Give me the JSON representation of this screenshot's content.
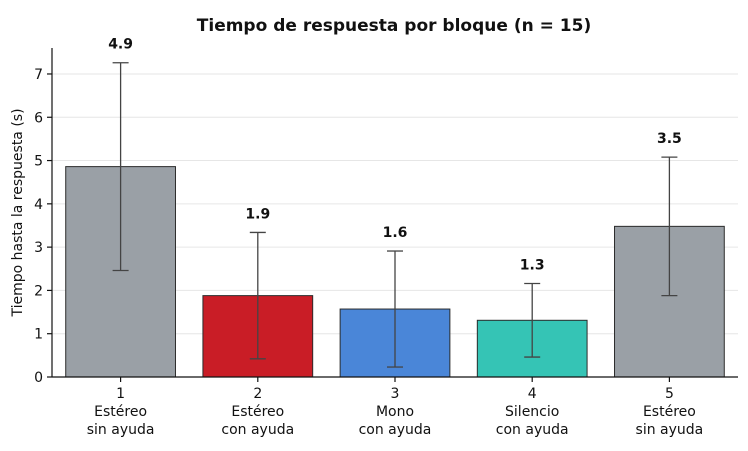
{
  "chart_data": {
    "type": "bar",
    "title": "Tiempo de respuesta por bloque (n = 15)",
    "ylabel": "Tiempo hasta la respuesta (s)",
    "xlabel": "",
    "ylim": [
      0,
      7.6
    ],
    "yticks": [
      0,
      1,
      2,
      3,
      4,
      5,
      6,
      7
    ],
    "grid": "y",
    "categories": [
      {
        "number": "1",
        "line1": "Estéreo",
        "line2": "sin ayuda"
      },
      {
        "number": "2",
        "line1": "Estéreo",
        "line2": "con ayuda"
      },
      {
        "number": "3",
        "line1": "Mono",
        "line2": "con ayuda"
      },
      {
        "number": "4",
        "line1": "Silencio",
        "line2": "con ayuda"
      },
      {
        "number": "5",
        "line1": "Estéreo",
        "line2": "sin ayuda"
      }
    ],
    "values": [
      4.86,
      1.88,
      1.57,
      1.31,
      3.48
    ],
    "errors": [
      2.4,
      1.46,
      1.34,
      0.85,
      1.6
    ],
    "value_labels": [
      "4.9",
      "1.9",
      "1.6",
      "1.3",
      "3.5"
    ],
    "colors": [
      "#9aa0a6",
      "#c91d26",
      "#4a86d8",
      "#35c4b5",
      "#9aa0a6"
    ]
  }
}
